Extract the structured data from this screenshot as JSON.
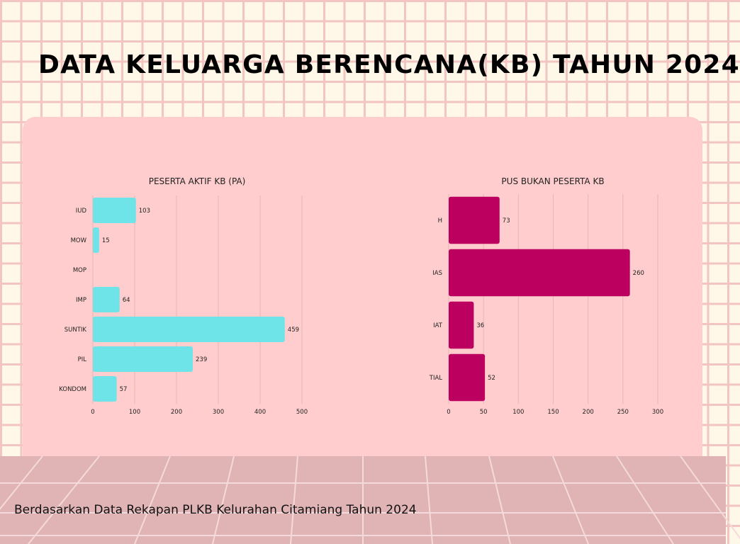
{
  "title": "DATA KELUARGA BERENCANA(KB) TAHUN 2024",
  "footer": "Berdasarkan Data Rekapan PLKB Kelurahan Citamiang Tahun 2024",
  "colors": {
    "background": "#fff8e8",
    "grid": "#f2c4c2",
    "panel": "#ffcdcd",
    "floor": "#e0b3b5",
    "series_peserta_aktif": "#6ee4e9",
    "series_pus_bukan_peserta": "#bb0060"
  },
  "chart_data": [
    {
      "type": "bar",
      "orientation": "horizontal",
      "title": "PESERTA AKTIF KB (PA)",
      "categories": [
        "IUD",
        "MOW",
        "MOP",
        "IMP",
        "SUNTIK",
        "PIL",
        "KONDOM"
      ],
      "values": [
        103,
        15,
        null,
        64,
        459,
        239,
        57
      ],
      "xlim": [
        0,
        500
      ],
      "xticks": [
        0,
        100,
        200,
        300,
        400,
        500
      ],
      "color": "#6ee4e9",
      "grid": "vertical",
      "legend": "none"
    },
    {
      "type": "bar",
      "orientation": "horizontal",
      "title": "PUS BUKAN PESERTA KB",
      "categories": [
        "H",
        "IAS",
        "IAT",
        "TIAL"
      ],
      "values": [
        73,
        260,
        36,
        52
      ],
      "xlim": [
        0,
        300
      ],
      "xticks": [
        0,
        50,
        100,
        150,
        200,
        250,
        300
      ],
      "color": "#bb0060",
      "grid": "vertical",
      "legend": "none"
    }
  ]
}
